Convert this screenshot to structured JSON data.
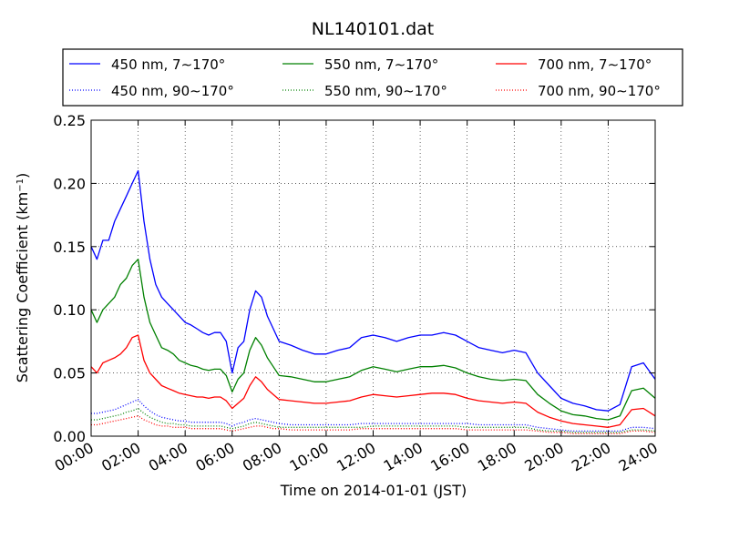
{
  "chart_data": {
    "type": "line",
    "title": "NL140101.dat",
    "xlabel": "Time on 2014-01-01 (JST)",
    "ylabel": "Scattering Coefficient (km",
    "ylabel_sup": "−1",
    "ylabel_close": ")",
    "xlim": [
      0,
      24
    ],
    "ylim": [
      0,
      0.25
    ],
    "x_tick_values": [
      0,
      2,
      4,
      6,
      8,
      10,
      12,
      14,
      16,
      18,
      20,
      22,
      24
    ],
    "x_tick_labels": [
      "00:00",
      "02:00",
      "04:00",
      "06:00",
      "08:00",
      "10:00",
      "12:00",
      "14:00",
      "16:00",
      "18:00",
      "20:00",
      "22:00",
      "24:00"
    ],
    "y_tick_values": [
      0,
      0.05,
      0.1,
      0.15,
      0.2,
      0.25
    ],
    "y_tick_labels": [
      "0.00",
      "0.05",
      "0.10",
      "0.15",
      "0.20",
      "0.25"
    ],
    "grid": true,
    "legend_position": "top, above plot, 3 columns",
    "x_hours": [
      0,
      0.25,
      0.5,
      0.75,
      1,
      1.25,
      1.5,
      1.75,
      2,
      2.25,
      2.5,
      2.75,
      3,
      3.25,
      3.5,
      3.75,
      4,
      4.25,
      4.5,
      4.75,
      5,
      5.25,
      5.5,
      5.75,
      6,
      6.25,
      6.5,
      6.75,
      7,
      7.25,
      7.5,
      7.75,
      8,
      8.5,
      9,
      9.5,
      10,
      10.5,
      11,
      11.5,
      12,
      12.5,
      13,
      13.5,
      14,
      14.5,
      15,
      15.5,
      16,
      16.5,
      17,
      17.5,
      18,
      18.5,
      19,
      19.5,
      20,
      20.5,
      21,
      21.5,
      22,
      22.5,
      23,
      23.5,
      24
    ],
    "series": [
      {
        "name": "450 nm, 7∼170°",
        "color": "#0000ff",
        "style": "solid",
        "values": [
          0.15,
          0.14,
          0.155,
          0.155,
          0.17,
          0.18,
          0.19,
          0.2,
          0.21,
          0.17,
          0.14,
          0.12,
          0.11,
          0.105,
          0.1,
          0.095,
          0.09,
          0.088,
          0.085,
          0.082,
          0.08,
          0.082,
          0.082,
          0.075,
          0.05,
          0.07,
          0.075,
          0.1,
          0.115,
          0.11,
          0.095,
          0.085,
          0.075,
          0.072,
          0.068,
          0.065,
          0.065,
          0.068,
          0.07,
          0.078,
          0.08,
          0.078,
          0.075,
          0.078,
          0.08,
          0.08,
          0.082,
          0.08,
          0.075,
          0.07,
          0.068,
          0.066,
          0.068,
          0.066,
          0.05,
          0.04,
          0.03,
          0.026,
          0.024,
          0.021,
          0.02,
          0.025,
          0.055,
          0.058,
          0.045
        ]
      },
      {
        "name": "450 nm, 90∼170°",
        "color": "#0000ff",
        "style": "dotted",
        "values": [
          0.018,
          0.018,
          0.019,
          0.02,
          0.021,
          0.023,
          0.025,
          0.027,
          0.029,
          0.024,
          0.02,
          0.017,
          0.015,
          0.014,
          0.013,
          0.012,
          0.012,
          0.011,
          0.011,
          0.011,
          0.011,
          0.011,
          0.011,
          0.01,
          0.008,
          0.01,
          0.011,
          0.013,
          0.014,
          0.013,
          0.012,
          0.011,
          0.01,
          0.009,
          0.009,
          0.009,
          0.009,
          0.009,
          0.009,
          0.01,
          0.01,
          0.01,
          0.01,
          0.01,
          0.01,
          0.01,
          0.01,
          0.01,
          0.01,
          0.009,
          0.009,
          0.009,
          0.009,
          0.009,
          0.007,
          0.006,
          0.005,
          0.004,
          0.004,
          0.004,
          0.004,
          0.004,
          0.007,
          0.007,
          0.006
        ]
      },
      {
        "name": "550 nm, 7∼170°",
        "color": "#008000",
        "style": "solid",
        "values": [
          0.1,
          0.09,
          0.1,
          0.105,
          0.11,
          0.12,
          0.125,
          0.135,
          0.14,
          0.11,
          0.09,
          0.08,
          0.07,
          0.068,
          0.065,
          0.06,
          0.058,
          0.056,
          0.055,
          0.053,
          0.052,
          0.053,
          0.053,
          0.048,
          0.035,
          0.045,
          0.05,
          0.068,
          0.078,
          0.072,
          0.062,
          0.055,
          0.048,
          0.047,
          0.045,
          0.043,
          0.043,
          0.045,
          0.047,
          0.052,
          0.055,
          0.053,
          0.051,
          0.053,
          0.055,
          0.055,
          0.056,
          0.054,
          0.05,
          0.047,
          0.045,
          0.044,
          0.045,
          0.044,
          0.033,
          0.026,
          0.02,
          0.017,
          0.016,
          0.014,
          0.013,
          0.016,
          0.036,
          0.038,
          0.03
        ]
      },
      {
        "name": "550 nm, 90∼170°",
        "color": "#008000",
        "style": "dotted",
        "values": [
          0.013,
          0.013,
          0.014,
          0.015,
          0.016,
          0.017,
          0.019,
          0.02,
          0.022,
          0.018,
          0.015,
          0.013,
          0.011,
          0.01,
          0.01,
          0.009,
          0.009,
          0.008,
          0.008,
          0.008,
          0.008,
          0.008,
          0.008,
          0.007,
          0.006,
          0.007,
          0.008,
          0.01,
          0.011,
          0.01,
          0.009,
          0.008,
          0.007,
          0.007,
          0.007,
          0.007,
          0.007,
          0.007,
          0.007,
          0.007,
          0.008,
          0.008,
          0.008,
          0.008,
          0.008,
          0.008,
          0.008,
          0.008,
          0.007,
          0.007,
          0.007,
          0.007,
          0.007,
          0.007,
          0.005,
          0.004,
          0.004,
          0.003,
          0.003,
          0.003,
          0.003,
          0.003,
          0.005,
          0.005,
          0.004
        ]
      },
      {
        "name": "700 nm, 7∼170°",
        "color": "#ff0000",
        "style": "solid",
        "values": [
          0.055,
          0.05,
          0.058,
          0.06,
          0.062,
          0.065,
          0.07,
          0.078,
          0.08,
          0.06,
          0.05,
          0.045,
          0.04,
          0.038,
          0.036,
          0.034,
          0.033,
          0.032,
          0.031,
          0.031,
          0.03,
          0.031,
          0.031,
          0.028,
          0.022,
          0.026,
          0.03,
          0.04,
          0.047,
          0.043,
          0.037,
          0.033,
          0.029,
          0.028,
          0.027,
          0.026,
          0.026,
          0.027,
          0.028,
          0.031,
          0.033,
          0.032,
          0.031,
          0.032,
          0.033,
          0.034,
          0.034,
          0.033,
          0.03,
          0.028,
          0.027,
          0.026,
          0.027,
          0.026,
          0.019,
          0.015,
          0.012,
          0.01,
          0.009,
          0.008,
          0.007,
          0.009,
          0.021,
          0.022,
          0.016
        ]
      },
      {
        "name": "700 nm, 90∼170°",
        "color": "#ff0000",
        "style": "dotted",
        "values": [
          0.009,
          0.009,
          0.01,
          0.011,
          0.012,
          0.013,
          0.014,
          0.015,
          0.016,
          0.013,
          0.011,
          0.009,
          0.008,
          0.008,
          0.007,
          0.007,
          0.007,
          0.006,
          0.006,
          0.006,
          0.006,
          0.006,
          0.006,
          0.005,
          0.004,
          0.005,
          0.006,
          0.007,
          0.008,
          0.008,
          0.007,
          0.006,
          0.006,
          0.005,
          0.005,
          0.005,
          0.005,
          0.005,
          0.005,
          0.006,
          0.006,
          0.006,
          0.006,
          0.006,
          0.006,
          0.006,
          0.006,
          0.006,
          0.005,
          0.005,
          0.005,
          0.005,
          0.005,
          0.005,
          0.004,
          0.003,
          0.003,
          0.002,
          0.002,
          0.002,
          0.002,
          0.002,
          0.004,
          0.004,
          0.003
        ]
      }
    ]
  }
}
